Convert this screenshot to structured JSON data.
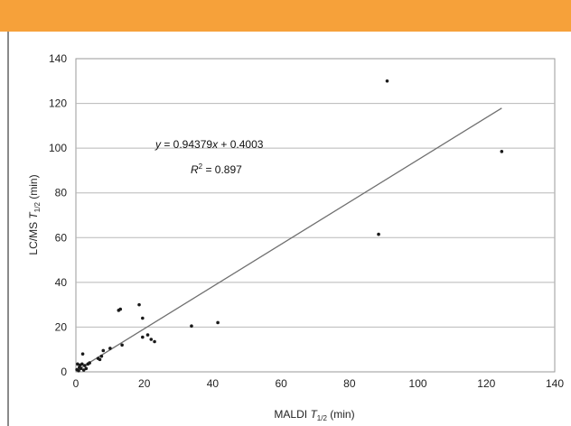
{
  "header": {
    "accent_color": "#f6a13a"
  },
  "chart_data": {
    "type": "scatter",
    "title": "",
    "xlabel": {
      "prefix": "MALDI ",
      "sym": "T",
      "sub": "1/2",
      "suffix": " (min)"
    },
    "ylabel": {
      "prefix": "LC/MS ",
      "sym": "T",
      "sub": "1/2",
      "suffix": " (min)"
    },
    "xlim": [
      0,
      140
    ],
    "ylim": [
      0,
      140
    ],
    "xticks": [
      "0",
      "20",
      "40",
      "60",
      "80",
      "100",
      "120",
      "140"
    ],
    "yticks": [
      "0",
      "20",
      "40",
      "60",
      "80",
      "100",
      "120",
      "140"
    ],
    "grid": true,
    "series": [
      {
        "points": [
          [
            0.3,
            1.0
          ],
          [
            0.5,
            3.5
          ],
          [
            0.8,
            0.5
          ],
          [
            1.0,
            2.0
          ],
          [
            1.2,
            3.0
          ],
          [
            1.5,
            1.5
          ],
          [
            1.8,
            3.5
          ],
          [
            2.0,
            8.0
          ],
          [
            2.3,
            0.8
          ],
          [
            2.6,
            2.8
          ],
          [
            3.0,
            1.5
          ],
          [
            3.5,
            3.5
          ],
          [
            4.0,
            4.0
          ],
          [
            6.5,
            6.0
          ],
          [
            7.0,
            5.5
          ],
          [
            7.5,
            7.0
          ],
          [
            8.0,
            9.5
          ],
          [
            10.0,
            10.5
          ],
          [
            12.5,
            27.5
          ],
          [
            13.0,
            28.0
          ],
          [
            13.5,
            12.0
          ],
          [
            18.5,
            30.0
          ],
          [
            19.5,
            24.0
          ],
          [
            19.5,
            15.5
          ],
          [
            21.0,
            16.5
          ],
          [
            22.0,
            14.5
          ],
          [
            23.0,
            13.5
          ],
          [
            33.8,
            20.5
          ],
          [
            41.5,
            22.0
          ],
          [
            88.5,
            61.5
          ],
          [
            91.0,
            130.0
          ],
          [
            124.5,
            98.5
          ]
        ]
      }
    ],
    "trendline": {
      "slope": 0.94379,
      "intercept": 0.4003,
      "x_range": [
        0,
        124.5
      ],
      "equation": {
        "y": "y",
        "mid": " = 0.94379",
        "x": "x",
        "rest": " + 0.4003"
      },
      "r2": {
        "R": "R",
        "sup": "2",
        "rest": " = 0.897"
      }
    }
  }
}
